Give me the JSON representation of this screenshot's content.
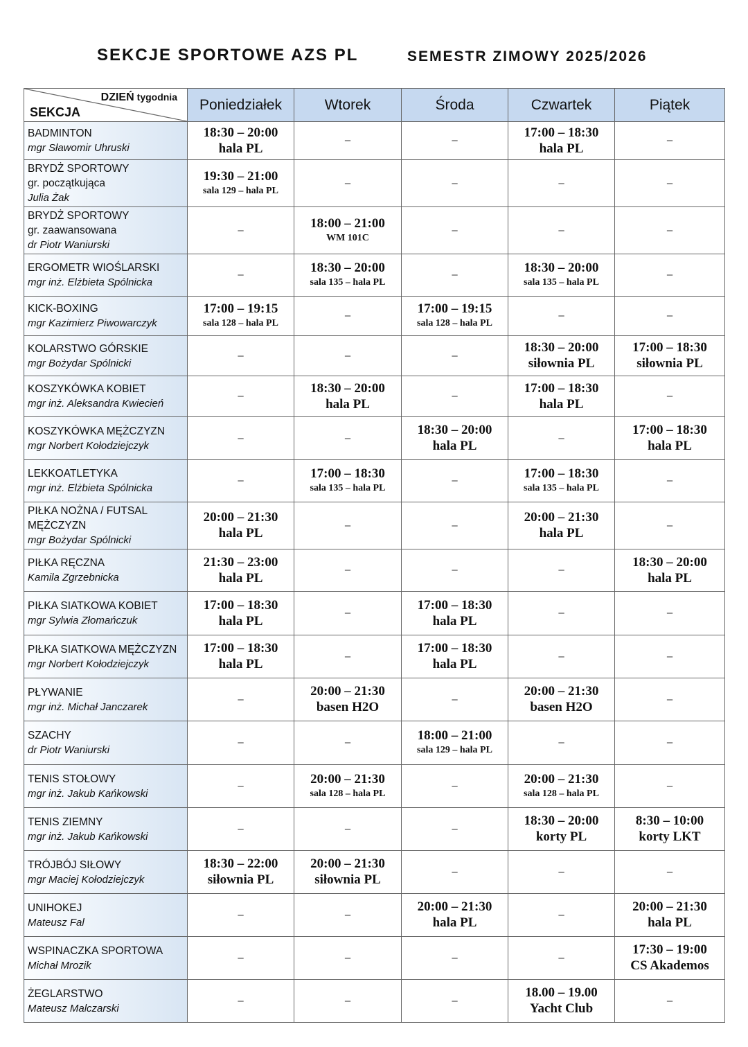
{
  "header": {
    "title": "SEKCJE  SPORTOWE AZS PL",
    "semester": "SEMESTR ZIMOWY 2025/2026"
  },
  "table": {
    "corner_day": "DZIEŃ",
    "corner_day_sub": "tygodnia",
    "corner_section": "SEKCJA",
    "days": [
      "Poniedziałek",
      "Wtorek",
      "Środa",
      "Czwartek",
      "Piątek"
    ],
    "empty": "–",
    "rows": [
      {
        "name": "BADMINTON",
        "coach": "mgr Sławomir Uhruski",
        "cells": [
          {
            "time": "18:30 – 20:00",
            "place": "hala PL"
          },
          null,
          null,
          {
            "time": "17:00 – 18:30",
            "place": "hala PL"
          },
          null
        ]
      },
      {
        "name": "BRYDŻ SPORTOWY",
        "sub": "gr. początkująca",
        "coach": "Julia Żak",
        "cells": [
          {
            "time": "19:30 – 21:00",
            "place": "sala 129 – hala PL"
          },
          null,
          null,
          null,
          null
        ]
      },
      {
        "name": "BRYDŻ SPORTOWY",
        "sub": "gr. zaawansowana",
        "coach": "dr Piotr Waniurski",
        "cells": [
          null,
          {
            "time": "18:00 – 21:00",
            "place": "WM 101C"
          },
          null,
          null,
          null
        ]
      },
      {
        "name": "ERGOMETR WIOŚLARSKI",
        "coach": "mgr inż. Elżbieta Spólnicka",
        "cells": [
          null,
          {
            "time": "18:30 – 20:00",
            "place": "sala 135 – hala PL"
          },
          null,
          {
            "time": "18:30 – 20:00",
            "place": "sala 135 – hala PL"
          },
          null
        ]
      },
      {
        "name": "KICK-BOXING",
        "coach": "mgr Kazimierz Piwowarczyk",
        "cells": [
          {
            "time": "17:00 – 19:15",
            "place": "sala 128 – hala PL"
          },
          null,
          {
            "time": "17:00 – 19:15",
            "place": "sala 128 – hala PL"
          },
          null,
          null
        ]
      },
      {
        "name": "KOLARSTWO GÓRSKIE",
        "coach": "mgr Bożydar Spólnicki",
        "cells": [
          null,
          null,
          null,
          {
            "time": "18:30 – 20:00",
            "place": "siłownia PL"
          },
          {
            "time": "17:00 – 18:30",
            "place": "siłownia PL"
          }
        ]
      },
      {
        "name": "KOSZYKÓWKA KOBIET",
        "coach": "mgr inż. Aleksandra Kwiecień",
        "cells": [
          null,
          {
            "time": "18:30 – 20:00",
            "place": "hala PL"
          },
          null,
          {
            "time": "17:00 – 18:30",
            "place": "hala PL"
          },
          null
        ]
      },
      {
        "name": "KOSZYKÓWKA MĘŻCZYZN",
        "coach": "mgr Norbert Kołodziejczyk",
        "cells": [
          null,
          null,
          {
            "time": "18:30 – 20:00",
            "place": "hala PL"
          },
          null,
          {
            "time": "17:00 – 18:30",
            "place": "hala PL"
          }
        ]
      },
      {
        "name": "LEKKOATLETYKA",
        "coach": "mgr inż. Elżbieta Spólnicka",
        "cells": [
          null,
          {
            "time": "17:00 – 18:30",
            "place": "sala 135 – hala PL"
          },
          null,
          {
            "time": "17:00 – 18:30",
            "place": "sala 135 – hala PL"
          },
          null
        ]
      },
      {
        "name": "PIŁKA NOŻNA / FUTSAL",
        "sub": "MĘŻCZYZN",
        "coach": "mgr Bożydar Spólnicki",
        "cells": [
          {
            "time": "20:00 – 21:30",
            "place": "hala PL"
          },
          null,
          null,
          {
            "time": "20:00 – 21:30",
            "place": "hala PL"
          },
          null
        ]
      },
      {
        "name": "PIŁKA RĘCZNA",
        "coach": "Kamila Zgrzebnicka",
        "cells": [
          {
            "time": "21:30 – 23:00",
            "place": "hala PL"
          },
          null,
          null,
          null,
          {
            "time": "18:30 – 20:00",
            "place": "hala PL"
          }
        ]
      },
      {
        "name": "PIŁKA SIATKOWA KOBIET",
        "coach": "mgr Sylwia Złomańczuk",
        "cells": [
          {
            "time": "17:00 – 18:30",
            "place": "hala PL"
          },
          null,
          {
            "time": "17:00 – 18:30",
            "place": "hala PL"
          },
          null,
          null
        ]
      },
      {
        "name": "PIŁKA SIATKOWA MĘŻCZYZN",
        "coach": "mgr Norbert Kołodziejczyk",
        "cells": [
          {
            "time": "17:00 – 18:30",
            "place": "hala PL"
          },
          null,
          {
            "time": "17:00 – 18:30",
            "place": "hala PL"
          },
          null,
          null
        ]
      },
      {
        "name": "PŁYWANIE",
        "coach": "mgr inż. Michał Janczarek",
        "cells": [
          null,
          {
            "time": "20:00 – 21:30",
            "place": "basen H2O"
          },
          null,
          {
            "time": "20:00 – 21:30",
            "place": "basen H2O"
          },
          null
        ]
      },
      {
        "name": "SZACHY",
        "coach": "dr Piotr Waniurski",
        "cells": [
          null,
          null,
          {
            "time": "18:00 – 21:00",
            "place": "sala 129 – hala PL"
          },
          null,
          null
        ]
      },
      {
        "name": "TENIS STOŁOWY",
        "coach": "mgr inż. Jakub Kańkowski",
        "cells": [
          null,
          {
            "time": "20:00 – 21:30",
            "place": "sala 128 – hala PL"
          },
          null,
          {
            "time": "20:00 – 21:30",
            "place": "sala 128 – hala PL"
          },
          null
        ]
      },
      {
        "name": "TENIS ZIEMNY",
        "coach": "mgr inż. Jakub Kańkowski",
        "cells": [
          null,
          null,
          null,
          {
            "time": "18:30 – 20:00",
            "place": "korty PL"
          },
          {
            "time": "8:30 – 10:00",
            "place": "korty LKT"
          }
        ]
      },
      {
        "name": "TRÓJBÓJ SIŁOWY",
        "coach": "mgr Maciej Kołodziejczyk",
        "cells": [
          {
            "time": "18:30 – 22:00",
            "place": "siłownia PL"
          },
          {
            "time": "20:00 – 21:30",
            "place": "siłownia PL"
          },
          null,
          null,
          null
        ]
      },
      {
        "name": "UNIHOKEJ",
        "coach": "Mateusz Fal",
        "cells": [
          null,
          null,
          {
            "time": "20:00 – 21:30",
            "place": "hala PL"
          },
          null,
          {
            "time": "20:00 – 21:30",
            "place": "hala PL"
          }
        ]
      },
      {
        "name": "WSPINACZKA SPORTOWA",
        "coach": "Michał Mrozik",
        "cells": [
          null,
          null,
          null,
          null,
          {
            "time": "17:30 – 19:00",
            "place": "CS Akademos"
          }
        ]
      },
      {
        "name": "ŻEGLARSTWO",
        "coach": "Mateusz Malczarski",
        "cells": [
          null,
          null,
          null,
          {
            "time": "18.00 – 19.00",
            "place": "Yacht Club"
          },
          null
        ]
      }
    ]
  }
}
